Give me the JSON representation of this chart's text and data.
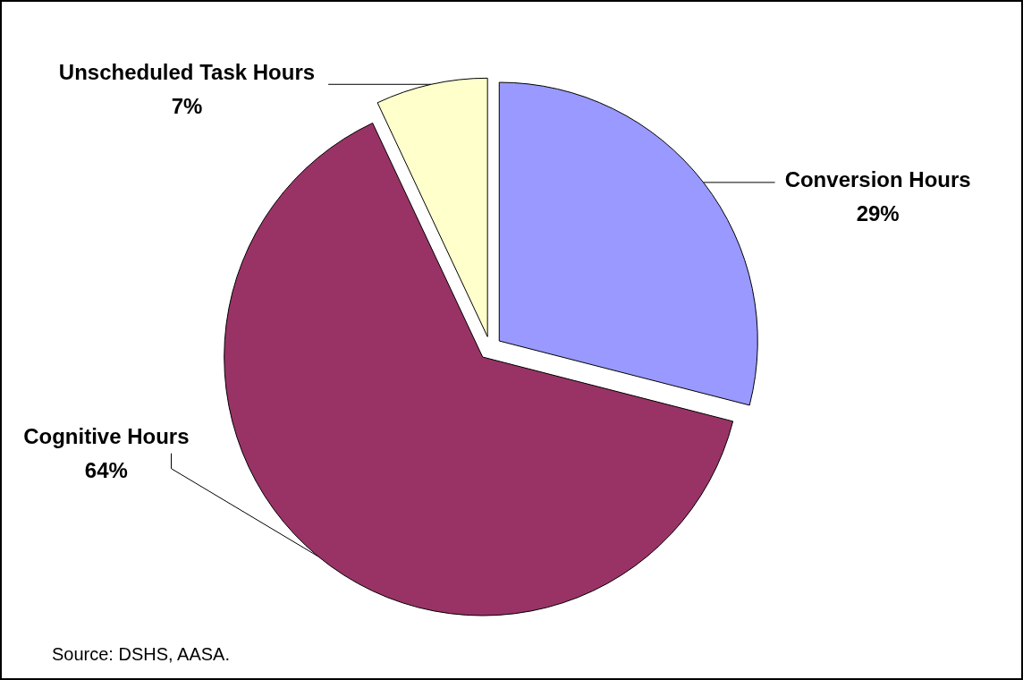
{
  "chart_data": {
    "type": "pie",
    "categories": [
      "Conversion Hours",
      "Cognitive Hours",
      "Unscheduled Task Hours"
    ],
    "values": [
      29,
      64,
      7
    ],
    "value_labels": [
      "29%",
      "64%",
      "7%"
    ],
    "colors": [
      "#9999ff",
      "#993366",
      "#ffffcc"
    ],
    "annotations": [
      "Source: DSHS, AASA."
    ]
  }
}
